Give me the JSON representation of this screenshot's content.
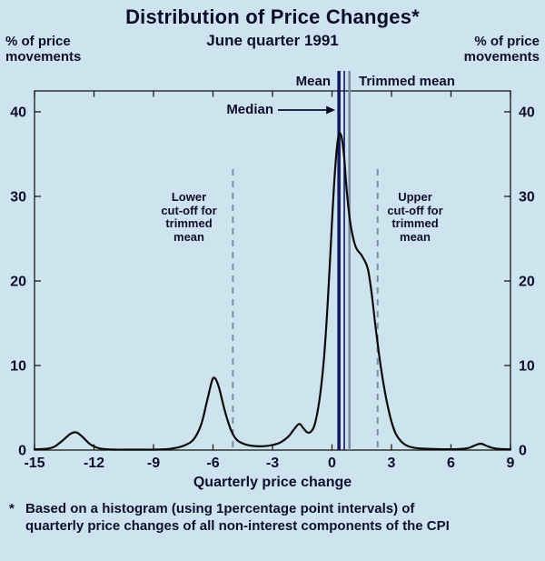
{
  "header": {
    "title": "Distribution of Price Changes*",
    "subtitle": "June quarter 1991"
  },
  "unit_labels": {
    "left": [
      "% of price",
      "movements"
    ],
    "right": [
      "% of price",
      "movements"
    ]
  },
  "chart_data": {
    "type": "line",
    "title": "Distribution of Price Changes*",
    "subtitle": "June quarter 1991",
    "xlabel": "Quarterly price change",
    "ylabel": "% of price movements",
    "xlim": [
      -15,
      9
    ],
    "ylim": [
      0,
      40
    ],
    "grid": false,
    "xticks": [
      -15,
      -12,
      -9,
      -6,
      -3,
      0,
      3,
      6,
      9
    ],
    "yticks": [
      0,
      10,
      20,
      30,
      40
    ],
    "colors": {
      "background": "#cde4ef",
      "curve": "#0a0a0a",
      "frame": "#1a1a1a",
      "text": "#0e0e2c",
      "mean_line": "#16165e",
      "median_line": "#16165e",
      "trimmed_mean_line": "#7b8da0",
      "cutoff_dashed": "#7b8da0"
    },
    "curve": [
      [
        -15,
        0.1
      ],
      [
        -14.4,
        0.15
      ],
      [
        -14,
        0.4
      ],
      [
        -13.6,
        1.1
      ],
      [
        -13.2,
        1.9
      ],
      [
        -12.9,
        2.1
      ],
      [
        -12.6,
        1.6
      ],
      [
        -12.2,
        0.7
      ],
      [
        -11.8,
        0.25
      ],
      [
        -11.4,
        0.1
      ],
      [
        -11,
        0.05
      ],
      [
        -10,
        0.05
      ],
      [
        -9,
        0.05
      ],
      [
        -8.4,
        0.1
      ],
      [
        -8,
        0.2
      ],
      [
        -7.5,
        0.5
      ],
      [
        -7,
        1.2
      ],
      [
        -6.6,
        3.0
      ],
      [
        -6.3,
        5.8
      ],
      [
        -6.05,
        8.2
      ],
      [
        -5.9,
        8.5
      ],
      [
        -5.7,
        7.4
      ],
      [
        -5.4,
        4.6
      ],
      [
        -5.1,
        2.4
      ],
      [
        -4.8,
        1.2
      ],
      [
        -4.4,
        0.7
      ],
      [
        -4,
        0.5
      ],
      [
        -3.5,
        0.45
      ],
      [
        -3,
        0.6
      ],
      [
        -2.6,
        0.9
      ],
      [
        -2.2,
        1.6
      ],
      [
        -1.9,
        2.5
      ],
      [
        -1.65,
        3.1
      ],
      [
        -1.45,
        2.6
      ],
      [
        -1.25,
        2.1
      ],
      [
        -1.05,
        2.2
      ],
      [
        -0.85,
        3.2
      ],
      [
        -0.6,
        6.5
      ],
      [
        -0.4,
        11
      ],
      [
        -0.2,
        18
      ],
      [
        0,
        27
      ],
      [
        0.15,
        33
      ],
      [
        0.3,
        36.8
      ],
      [
        0.45,
        37.3
      ],
      [
        0.6,
        35
      ],
      [
        0.75,
        30.5
      ],
      [
        0.95,
        26.5
      ],
      [
        1.2,
        24
      ],
      [
        1.5,
        23
      ],
      [
        1.8,
        21.5
      ],
      [
        2,
        18.5
      ],
      [
        2.2,
        14.5
      ],
      [
        2.45,
        10
      ],
      [
        2.7,
        6.5
      ],
      [
        2.95,
        3.8
      ],
      [
        3.2,
        2
      ],
      [
        3.5,
        1
      ],
      [
        3.8,
        0.5
      ],
      [
        4.2,
        0.25
      ],
      [
        4.8,
        0.15
      ],
      [
        5.5,
        0.1
      ],
      [
        6.2,
        0.1
      ],
      [
        6.8,
        0.2
      ],
      [
        7.2,
        0.55
      ],
      [
        7.5,
        0.75
      ],
      [
        7.8,
        0.5
      ],
      [
        8.1,
        0.25
      ],
      [
        8.5,
        0.12
      ],
      [
        9,
        0.1
      ]
    ],
    "reference_lines": {
      "mean": {
        "x": 0.35,
        "label": "Mean"
      },
      "median": {
        "x": 0.62,
        "label": "Median"
      },
      "trimmed_mean": {
        "x": 0.88,
        "label": "Trimmed mean"
      },
      "lower_cutoff": {
        "x": -5.0,
        "style": "dashed",
        "label_lines": [
          "Lower",
          "cut-off for",
          "trimmed",
          "mean"
        ]
      },
      "upper_cutoff": {
        "x": 2.3,
        "style": "dashed",
        "label_lines": [
          "Upper",
          "cut-off for",
          "trimmed",
          "mean"
        ]
      }
    },
    "footnote": {
      "marker": "*",
      "lines": [
        "Based on a histogram (using 1percentage point intervals) of",
        "quarterly price changes of all non-interest components of the CPI"
      ]
    }
  }
}
